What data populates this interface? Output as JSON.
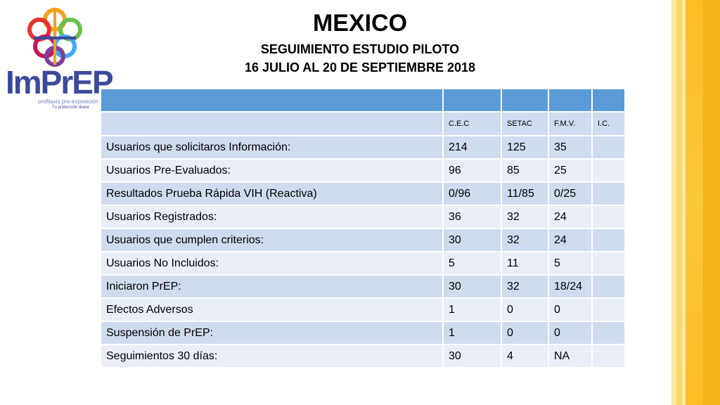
{
  "logo": {
    "wordmark": "ImPrEP",
    "tagline": "profilaxis pre-exposición",
    "subtagline": "Tu protección diaria"
  },
  "colors": {
    "header_blue": "#5b9bd5",
    "row_dark": "#cfdbee",
    "row_light": "#e9eef7",
    "logo_blue": "#3b4a9b",
    "accent_yellow": "#fdbd25"
  },
  "title": {
    "main": "MEXICO",
    "line2": "SEGUIMIENTO ESTUDIO PILOTO",
    "line3": "16 JULIO AL 20 DE SEPTIEMBRE  2018"
  },
  "table": {
    "columns": [
      "C.E.C",
      "SETAC",
      "F.M.V.",
      "I.C."
    ],
    "rows": [
      {
        "label": "Usuarios que solicitaros Información:",
        "values": [
          "214",
          "125",
          "35",
          ""
        ]
      },
      {
        "label": "Usuarios Pre-Evaluados:",
        "values": [
          "96",
          "85",
          "25",
          ""
        ]
      },
      {
        "label": "Resultados Prueba Rápida VIH (Reactiva)",
        "values": [
          "0/96",
          "11/85",
          "0/25",
          ""
        ]
      },
      {
        "label": "Usuarios Registrados:",
        "values": [
          "36",
          "32",
          "24",
          ""
        ]
      },
      {
        "label": "Usuarios que cumplen criterios:",
        "values": [
          "30",
          "32",
          "24",
          ""
        ]
      },
      {
        "label": "Usuarios No Incluidos:",
        "values": [
          "5",
          "11",
          "5",
          ""
        ]
      },
      {
        "label": "Iniciaron PrEP:",
        "values": [
          "30",
          "32",
          "18/24",
          ""
        ]
      },
      {
        "label": "Efectos Adversos",
        "values": [
          "1",
          "0",
          "0",
          ""
        ]
      },
      {
        "label": "Suspensión de PrEP:",
        "values": [
          "1",
          "0",
          "0",
          ""
        ]
      },
      {
        "label": "Seguimientos 30 días:",
        "values": [
          "30",
          "4",
          "NA",
          ""
        ]
      }
    ]
  }
}
